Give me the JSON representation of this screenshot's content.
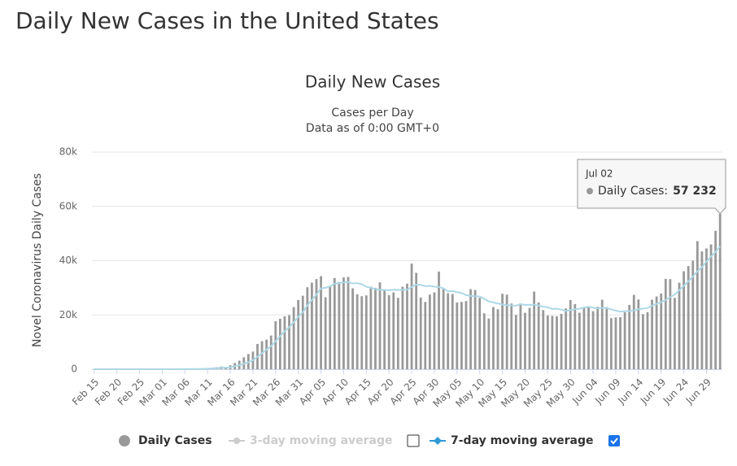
{
  "page_title": "Daily New Cases in the United States",
  "chart_data": {
    "type": "bar",
    "title": "Daily New Cases",
    "subtitle": "Cases per Day",
    "subtitle2": "Data as of 0:00 GMT+0",
    "y_axis_label": "Novel Coronavirus Daily Cases",
    "ylim": [
      0,
      80000
    ],
    "yticks": [
      0,
      {
        "value": 20000,
        "label": "20k"
      },
      {
        "value": 40000,
        "label": "40k"
      },
      {
        "value": 60000,
        "label": "60k"
      },
      {
        "value": 80000,
        "label": "80k"
      }
    ],
    "grid": true,
    "categories": [
      "Feb 15",
      null,
      null,
      null,
      null,
      "Feb 20",
      null,
      null,
      null,
      null,
      "Feb 25",
      null,
      null,
      null,
      null,
      "Mar 01",
      null,
      null,
      null,
      null,
      "Mar 06",
      null,
      null,
      null,
      null,
      "Mar 11",
      null,
      null,
      null,
      null,
      "Mar 16",
      null,
      null,
      null,
      null,
      "Mar 21",
      null,
      null,
      null,
      null,
      "Mar 26",
      null,
      null,
      null,
      null,
      "Mar 31",
      null,
      null,
      null,
      null,
      "Apr 05",
      null,
      null,
      null,
      null,
      "Apr 10",
      null,
      null,
      null,
      null,
      "Apr 15",
      null,
      null,
      null,
      null,
      "Apr 20",
      null,
      null,
      null,
      null,
      "Apr 25",
      null,
      null,
      null,
      null,
      "Apr 30",
      null,
      null,
      null,
      null,
      "May 05",
      null,
      null,
      null,
      null,
      "May 10",
      null,
      null,
      null,
      null,
      "May 15",
      null,
      null,
      null,
      null,
      "May 20",
      null,
      null,
      null,
      null,
      "May 25",
      null,
      null,
      null,
      null,
      "May 30",
      null,
      null,
      null,
      null,
      "Jun 04",
      null,
      null,
      null,
      null,
      "Jun 09",
      null,
      null,
      null,
      null,
      "Jun 14",
      null,
      null,
      null,
      null,
      "Jun 19",
      null,
      null,
      null,
      null,
      "Jun 24",
      null,
      null,
      null,
      null,
      "Jun 29",
      null,
      null,
      null
    ],
    "series": [
      {
        "name": "Daily Cases",
        "color": "#999999",
        "type": "bar",
        "values": [
          0,
          0,
          0,
          0,
          0,
          0,
          0,
          0,
          0,
          0,
          0,
          1,
          0,
          0,
          3,
          8,
          22,
          24,
          26,
          69,
          74,
          107,
          116,
          131,
          285,
          400,
          528,
          772,
          1004,
          737,
          1460,
          2285,
          3152,
          4400,
          5600,
          6500,
          9300,
          10300,
          10900,
          12400,
          17700,
          18600,
          19500,
          19900,
          22900,
          25500,
          27100,
          30200,
          31900,
          33200,
          34300,
          26500,
          30600,
          33600,
          32100,
          33800,
          34000,
          29800,
          27600,
          26900,
          27200,
          30400,
          30000,
          32000,
          29000,
          27300,
          28300,
          26300,
          30400,
          31500,
          38900,
          35500,
          26400,
          24800,
          27500,
          28300,
          36000,
          29500,
          28000,
          27700,
          24600,
          24800,
          25100,
          29500,
          29200,
          26300,
          20600,
          18700,
          22900,
          22100,
          27800,
          27500,
          24200,
          20000,
          23700,
          20800,
          22600,
          28600,
          24600,
          21800,
          19800,
          19600,
          19500,
          20400,
          22400,
          25500,
          24000,
          20800,
          22500,
          23100,
          21400,
          23000,
          25600,
          22900,
          18800,
          19100,
          19200,
          21000,
          23700,
          27400,
          25700,
          20300,
          21000,
          25600,
          26800,
          27900,
          33300,
          33200,
          26300,
          31900,
          36100,
          38000,
          40000,
          47200,
          43400,
          44500,
          46000,
          51000,
          57232
        ]
      },
      {
        "name": "7-day moving average",
        "color": "#add8e6",
        "type": "line",
        "values": [
          0,
          0,
          0,
          0,
          0,
          0,
          0,
          0,
          0,
          0,
          0,
          0,
          0,
          0,
          0,
          5,
          8,
          11,
          15,
          22,
          30,
          45,
          60,
          85,
          120,
          180,
          250,
          360,
          500,
          580,
          750,
          1100,
          1500,
          2000,
          2600,
          3300,
          4600,
          5900,
          7200,
          8500,
          10300,
          12200,
          14000,
          15500,
          17300,
          19300,
          21000,
          23500,
          25500,
          27500,
          29800,
          30000,
          30500,
          31500,
          31700,
          32000,
          32100,
          31600,
          31700,
          31300,
          30400,
          30000,
          29500,
          29200,
          29200,
          29100,
          29300,
          29200,
          29200,
          29300,
          30300,
          31200,
          31100,
          30600,
          30700,
          30400,
          30300,
          29800,
          28700,
          28800,
          28400,
          28100,
          27300,
          27000,
          26900,
          26800,
          25900,
          25000,
          24600,
          24200,
          23900,
          23600,
          23500,
          23400,
          24000,
          23700,
          23700,
          23800,
          23400,
          23000,
          22800,
          22200,
          22300,
          22000,
          21400,
          21800,
          22100,
          22300,
          22700,
          23000,
          22700,
          22400,
          22600,
          22500,
          22000,
          21600,
          21200,
          21400,
          21400,
          21700,
          22100,
          22300,
          22600,
          23400,
          24100,
          24700,
          25500,
          26600,
          27500,
          29100,
          30700,
          32400,
          34100,
          36100,
          37600,
          39700,
          41500,
          43200,
          45300
        ]
      }
    ],
    "hidden_series": [
      {
        "name": "3-day moving average",
        "color": "#cccccc"
      }
    ],
    "tooltip": {
      "date": "Jul 02",
      "series_label": "Daily Cases:",
      "value": 57232,
      "value_label": "57 232"
    }
  }
}
